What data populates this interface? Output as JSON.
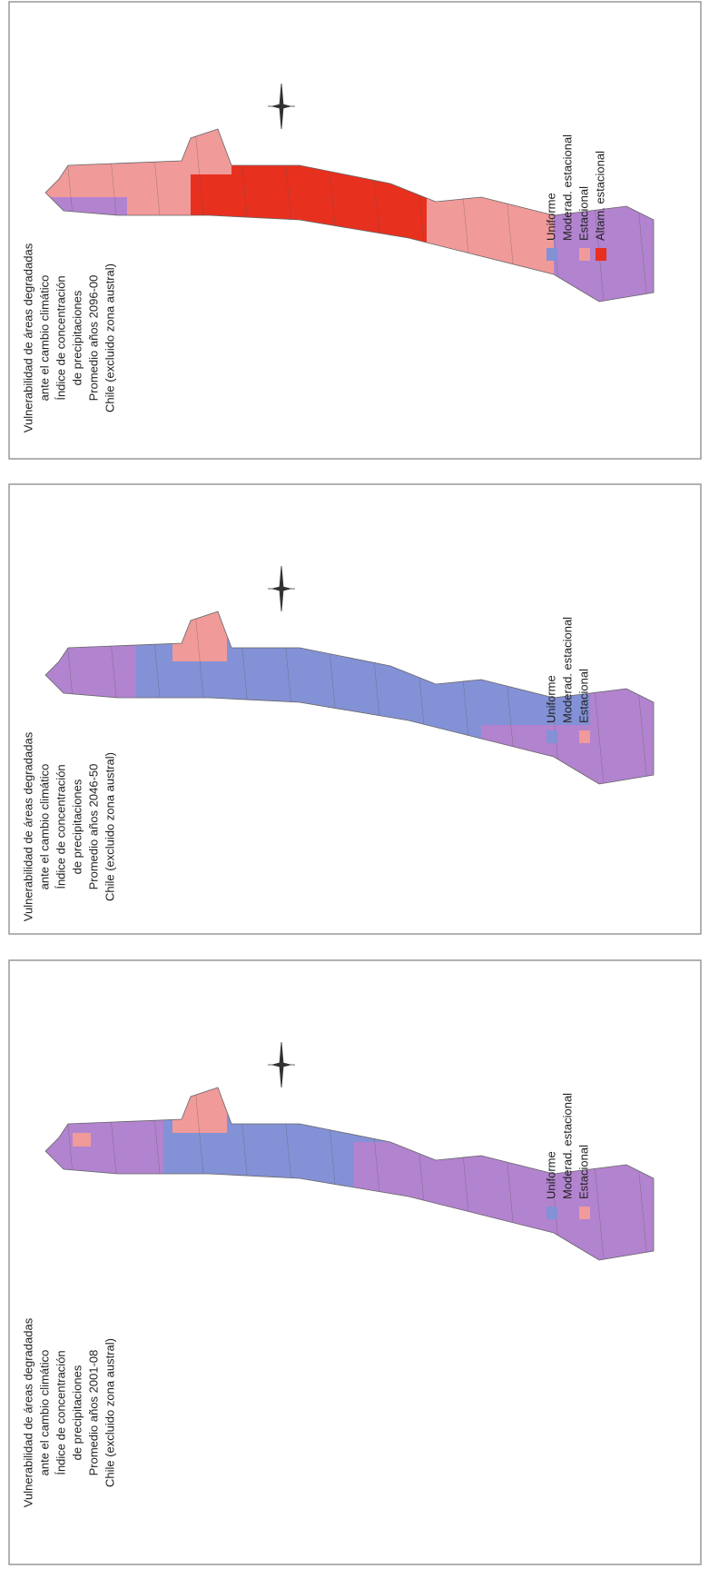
{
  "panels": [
    {
      "title_lines": [
        "Vulnerabilidad de áreas degradadas",
        "ante el cambio climático",
        "Índice de concentración",
        "de precipitaciones",
        "Promedio años 2096-00",
        "Chile (excluido zona austral)"
      ],
      "legend": [
        {
          "label": "Uniforme",
          "color": "#8391d6"
        },
        {
          "label": "Moderad. estacional",
          "color": "#b283cf"
        },
        {
          "label": "Estacional",
          "color": "#f09a9a"
        },
        {
          "label": "Altam. estacional",
          "color": "#e8301f"
        }
      ]
    },
    {
      "title_lines": [
        "Vulnerabilidad de áreas degradadas",
        "ante el cambio climático",
        "Índice de concentración",
        "de precipitaciones",
        "Promedio años 2046-50",
        "Chile (excluido zona austral)"
      ],
      "legend": [
        {
          "label": "Uniforme",
          "color": "#8391d6"
        },
        {
          "label": "Moderad. estacional",
          "color": "#b283cf"
        },
        {
          "label": "Estacional",
          "color": "#f09a9a"
        }
      ]
    },
    {
      "title_lines": [
        "Vulnerabilidad de áreas degradadas",
        "ante el cambio climático",
        "Índice de concentración",
        "de precipitaciones",
        "Promedio años 2001-08",
        "Chile (excluido zona austral)"
      ],
      "legend": [
        {
          "label": "Uniforme",
          "color": "#8391d6"
        },
        {
          "label": "Moderad. estacional",
          "color": "#b283cf"
        },
        {
          "label": "Estacional",
          "color": "#f09a9a"
        }
      ]
    }
  ]
}
